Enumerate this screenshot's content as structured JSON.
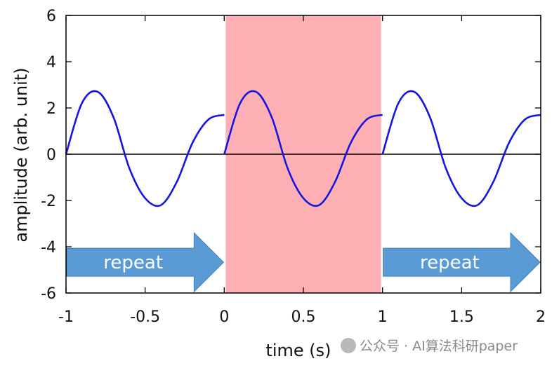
{
  "chart_data": {
    "type": "line",
    "title": "",
    "xlabel": "time (s)",
    "ylabel": "amplitude (arb. unit)",
    "xlim": [
      -1,
      2
    ],
    "ylim": [
      -6,
      6
    ],
    "xticks": [
      "-1",
      "-0.5",
      "0",
      "0.5",
      "1",
      "1.5",
      "2"
    ],
    "yticks": [
      "6",
      "4",
      "2",
      "0",
      "-2",
      "-4",
      "-6"
    ],
    "grid": false,
    "series": [
      {
        "color": "#1515e0",
        "x": [
          -1.0,
          -0.9,
          -0.8,
          -0.7,
          -0.6,
          -0.5,
          -0.4,
          -0.3,
          -0.2,
          -0.1,
          0.0,
          0.0,
          0.1,
          0.2,
          0.3,
          0.4,
          0.5,
          0.6,
          0.7,
          0.8,
          0.9,
          1.0,
          1.0,
          1.1,
          1.2,
          1.3,
          1.4,
          1.5,
          1.6,
          1.7,
          1.8,
          1.9,
          2.0
        ],
        "y": [
          0.0,
          2.2,
          2.7,
          1.6,
          -0.6,
          -1.9,
          -2.2,
          -1.2,
          0.5,
          1.5,
          1.7,
          0.0,
          2.2,
          2.7,
          1.6,
          -0.6,
          -1.9,
          -2.2,
          -1.2,
          0.5,
          1.5,
          1.7,
          0.0,
          2.2,
          2.7,
          1.6,
          -0.6,
          -1.9,
          -2.2,
          -1.2,
          0.5,
          1.5,
          1.7
        ]
      }
    ],
    "highlight_band": {
      "x": [
        0,
        1
      ],
      "color": "#ffb0b4"
    },
    "annotations": [
      {
        "type": "arrow",
        "label": "repeat",
        "x": [
          -1,
          0
        ],
        "y": [
          -6,
          -3.4
        ],
        "color": "#5b9bd5"
      },
      {
        "type": "arrow",
        "label": "repeat",
        "x": [
          1,
          2
        ],
        "y": [
          -6,
          -3.4
        ],
        "color": "#5b9bd5"
      }
    ]
  },
  "watermark": {
    "text": "公众号 · AI算法科研paper"
  },
  "colors": {
    "axis": "#000000",
    "zero_line": "#000000"
  }
}
